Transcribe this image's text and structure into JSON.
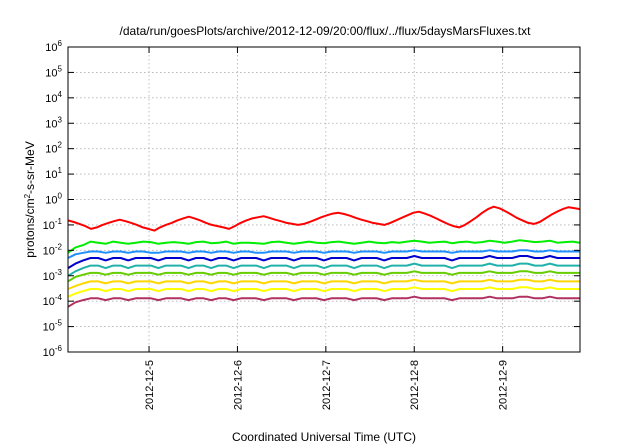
{
  "chart_data": {
    "type": "line",
    "title": "/data/run/goesPlots/archive/2012-12-09/20:00/flux/../flux/5daysMarsFluxes.txt",
    "xlabel": "Coordinated Universal Time (UTC)",
    "ylabel_parts": {
      "base": "protons/cm",
      "sup": "2",
      "rest": "-s-sr-MeV"
    },
    "y_scale": "log",
    "ylim": [
      1e-06,
      1000000.0
    ],
    "y_ticks": [
      {
        "mant": "10",
        "exp": "-6",
        "value": 1e-06
      },
      {
        "mant": "10",
        "exp": "-5",
        "value": 1e-05
      },
      {
        "mant": "10",
        "exp": "-4",
        "value": 0.0001
      },
      {
        "mant": "10",
        "exp": "-3",
        "value": 0.001
      },
      {
        "mant": "10",
        "exp": "-2",
        "value": 0.01
      },
      {
        "mant": "10",
        "exp": "-1",
        "value": 0.1
      },
      {
        "mant": "10",
        "exp": "0",
        "value": 1
      },
      {
        "mant": "10",
        "exp": "1",
        "value": 10
      },
      {
        "mant": "10",
        "exp": "2",
        "value": 100
      },
      {
        "mant": "10",
        "exp": "3",
        "value": 1000
      },
      {
        "mant": "10",
        "exp": "4",
        "value": 10000
      },
      {
        "mant": "10",
        "exp": "5",
        "value": 100000
      },
      {
        "mant": "10",
        "exp": "6",
        "value": 1000000
      }
    ],
    "xlim": [
      "2012-12-04T02:00",
      "2012-12-09T21:00"
    ],
    "x_ticks": [
      "2012-12-5",
      "2012-12-6",
      "2012-12-7",
      "2012-12-8",
      "2012-12-9"
    ],
    "x_tick_values": [
      "2012-12-05",
      "2012-12-06",
      "2012-12-07",
      "2012-12-08",
      "2012-12-09"
    ],
    "grid": true,
    "legend": "none",
    "series": [
      {
        "color": "#ff0000",
        "values": [
          0.15,
          0.13,
          0.11,
          0.09,
          0.07,
          0.08,
          0.1,
          0.12,
          0.14,
          0.16,
          0.14,
          0.12,
          0.1,
          0.08,
          0.07,
          0.06,
          0.08,
          0.1,
          0.12,
          0.15,
          0.18,
          0.21,
          0.18,
          0.15,
          0.12,
          0.1,
          0.09,
          0.08,
          0.07,
          0.09,
          0.12,
          0.15,
          0.18,
          0.2,
          0.22,
          0.19,
          0.16,
          0.14,
          0.12,
          0.11,
          0.1,
          0.11,
          0.13,
          0.16,
          0.2,
          0.24,
          0.28,
          0.3,
          0.27,
          0.23,
          0.19,
          0.16,
          0.14,
          0.12,
          0.11,
          0.1,
          0.12,
          0.15,
          0.19,
          0.24,
          0.3,
          0.33,
          0.28,
          0.23,
          0.18,
          0.14,
          0.11,
          0.09,
          0.08,
          0.1,
          0.14,
          0.2,
          0.3,
          0.42,
          0.52,
          0.45,
          0.35,
          0.26,
          0.19,
          0.15,
          0.12,
          0.11,
          0.13,
          0.18,
          0.25,
          0.33,
          0.42,
          0.5,
          0.46,
          0.42
        ]
      },
      {
        "color": "#00ee00",
        "values": [
          0.008,
          0.013,
          0.016,
          0.022,
          0.02,
          0.018,
          0.022,
          0.02,
          0.018,
          0.02,
          0.022,
          0.021,
          0.018,
          0.02,
          0.021,
          0.02,
          0.018,
          0.021,
          0.022,
          0.019,
          0.02,
          0.022,
          0.018,
          0.02,
          0.02,
          0.019,
          0.018,
          0.021,
          0.022,
          0.02,
          0.018,
          0.02,
          0.022,
          0.02,
          0.019,
          0.021,
          0.022,
          0.02,
          0.018,
          0.02,
          0.022,
          0.02,
          0.019,
          0.021,
          0.02,
          0.022,
          0.024,
          0.022,
          0.02,
          0.021,
          0.022,
          0.019,
          0.021,
          0.022,
          0.02,
          0.021,
          0.024,
          0.022,
          0.02,
          0.022,
          0.025,
          0.023,
          0.021,
          0.022,
          0.024,
          0.02,
          0.021,
          0.022,
          0.02
        ]
      },
      {
        "color": "#1e90ff",
        "values": [
          0.005,
          0.007,
          0.008,
          0.009,
          0.009,
          0.008,
          0.009,
          0.009,
          0.008,
          0.009,
          0.009,
          0.008,
          0.008,
          0.009,
          0.009,
          0.009,
          0.008,
          0.009,
          0.009,
          0.008,
          0.009,
          0.009,
          0.008,
          0.009,
          0.009,
          0.008,
          0.008,
          0.009,
          0.009,
          0.009,
          0.008,
          0.009,
          0.009,
          0.009,
          0.008,
          0.009,
          0.009,
          0.009,
          0.008,
          0.009,
          0.009,
          0.009,
          0.008,
          0.009,
          0.009,
          0.009,
          0.01,
          0.009,
          0.009,
          0.009,
          0.009,
          0.008,
          0.009,
          0.009,
          0.009,
          0.009,
          0.01,
          0.009,
          0.009,
          0.009,
          0.01,
          0.01,
          0.009,
          0.009,
          0.01,
          0.009,
          0.009,
          0.009,
          0.009
        ]
      },
      {
        "color": "#0000cd",
        "values": [
          0.002,
          0.003,
          0.004,
          0.005,
          0.005,
          0.004,
          0.005,
          0.005,
          0.004,
          0.005,
          0.005,
          0.005,
          0.004,
          0.005,
          0.005,
          0.005,
          0.004,
          0.005,
          0.005,
          0.004,
          0.005,
          0.005,
          0.004,
          0.005,
          0.005,
          0.005,
          0.004,
          0.005,
          0.005,
          0.005,
          0.004,
          0.005,
          0.005,
          0.005,
          0.004,
          0.005,
          0.005,
          0.005,
          0.004,
          0.005,
          0.005,
          0.005,
          0.004,
          0.005,
          0.005,
          0.005,
          0.006,
          0.005,
          0.005,
          0.005,
          0.005,
          0.004,
          0.005,
          0.005,
          0.005,
          0.005,
          0.006,
          0.005,
          0.005,
          0.005,
          0.006,
          0.006,
          0.005,
          0.005,
          0.006,
          0.005,
          0.005,
          0.005,
          0.005
        ]
      },
      {
        "color": "#20b2aa",
        "values": [
          0.001,
          0.0015,
          0.002,
          0.0025,
          0.0025,
          0.002,
          0.0025,
          0.0025,
          0.002,
          0.0025,
          0.0025,
          0.0025,
          0.002,
          0.0025,
          0.0025,
          0.0025,
          0.002,
          0.0025,
          0.0025,
          0.002,
          0.0025,
          0.0025,
          0.002,
          0.0025,
          0.0025,
          0.0025,
          0.002,
          0.0025,
          0.0025,
          0.0025,
          0.002,
          0.0025,
          0.0025,
          0.0025,
          0.002,
          0.0025,
          0.0025,
          0.0025,
          0.002,
          0.0025,
          0.0025,
          0.0025,
          0.002,
          0.0025,
          0.0025,
          0.0025,
          0.003,
          0.0025,
          0.0025,
          0.0025,
          0.0025,
          0.002,
          0.0025,
          0.0025,
          0.0025,
          0.0025,
          0.003,
          0.0025,
          0.0025,
          0.0025,
          0.003,
          0.003,
          0.0025,
          0.0025,
          0.003,
          0.0025,
          0.0025,
          0.0025,
          0.0025
        ]
      },
      {
        "color": "#66cd00",
        "values": [
          0.0006,
          0.0009,
          0.0011,
          0.0013,
          0.0013,
          0.0011,
          0.0013,
          0.0013,
          0.0011,
          0.0013,
          0.0013,
          0.0013,
          0.0011,
          0.0013,
          0.0013,
          0.0013,
          0.0011,
          0.0013,
          0.0013,
          0.0011,
          0.0013,
          0.0013,
          0.0011,
          0.0013,
          0.0013,
          0.0013,
          0.0011,
          0.0013,
          0.0013,
          0.0013,
          0.0011,
          0.0013,
          0.0013,
          0.0013,
          0.0011,
          0.0013,
          0.0013,
          0.0013,
          0.0011,
          0.0013,
          0.0013,
          0.0013,
          0.0011,
          0.0013,
          0.0013,
          0.0013,
          0.0015,
          0.0013,
          0.0013,
          0.0013,
          0.0013,
          0.0011,
          0.0013,
          0.0013,
          0.0013,
          0.0013,
          0.0015,
          0.0013,
          0.0013,
          0.0013,
          0.0015,
          0.0015,
          0.0013,
          0.0013,
          0.0015,
          0.0013,
          0.0013,
          0.0013,
          0.0013
        ]
      },
      {
        "color": "#ffd700",
        "values": [
          0.0003,
          0.0004,
          0.0005,
          0.0006,
          0.0006,
          0.0005,
          0.0006,
          0.0006,
          0.0005,
          0.0006,
          0.0006,
          0.0006,
          0.0005,
          0.0006,
          0.0006,
          0.0006,
          0.0005,
          0.0006,
          0.0006,
          0.0005,
          0.0006,
          0.0006,
          0.0005,
          0.0006,
          0.0006,
          0.0006,
          0.0005,
          0.0006,
          0.0006,
          0.0006,
          0.0005,
          0.0006,
          0.0006,
          0.0006,
          0.0005,
          0.0006,
          0.0006,
          0.0006,
          0.0005,
          0.0006,
          0.0006,
          0.0006,
          0.0005,
          0.0006,
          0.0006,
          0.0006,
          0.0007,
          0.0006,
          0.0006,
          0.0006,
          0.0006,
          0.0005,
          0.0006,
          0.0006,
          0.0006,
          0.0006,
          0.0007,
          0.0006,
          0.0006,
          0.0006,
          0.0007,
          0.0007,
          0.0006,
          0.0006,
          0.0007,
          0.0006,
          0.0006,
          0.0006,
          0.0006
        ]
      },
      {
        "color": "#ffff00",
        "values": [
          0.00015,
          0.0002,
          0.00025,
          0.0003,
          0.0003,
          0.00025,
          0.0003,
          0.0003,
          0.00025,
          0.0003,
          0.0003,
          0.0003,
          0.00025,
          0.0003,
          0.0003,
          0.0003,
          0.00025,
          0.0003,
          0.0003,
          0.00025,
          0.0003,
          0.0003,
          0.00025,
          0.0003,
          0.0003,
          0.0003,
          0.00025,
          0.0003,
          0.0003,
          0.0003,
          0.00025,
          0.0003,
          0.0003,
          0.0003,
          0.00025,
          0.0003,
          0.0003,
          0.0003,
          0.00025,
          0.0003,
          0.0003,
          0.0003,
          0.00025,
          0.0003,
          0.0003,
          0.0003,
          0.00035,
          0.0003,
          0.0003,
          0.0003,
          0.0003,
          0.00025,
          0.0003,
          0.0003,
          0.0003,
          0.0003,
          0.00035,
          0.0003,
          0.0003,
          0.0003,
          0.00035,
          0.00035,
          0.0003,
          0.0003,
          0.00035,
          0.0003,
          0.0003,
          0.0003,
          0.0003
        ]
      },
      {
        "color": "#b03060",
        "values": [
          6e-05,
          9e-05,
          0.00011,
          0.00013,
          0.00013,
          0.00011,
          0.00013,
          0.00013,
          0.00011,
          0.00013,
          0.00013,
          0.00013,
          0.00011,
          0.00013,
          0.00013,
          0.00013,
          0.00011,
          0.00013,
          0.00013,
          0.00011,
          0.00013,
          0.00013,
          0.00011,
          0.00013,
          0.00013,
          0.00013,
          0.00011,
          0.00013,
          0.00013,
          0.00013,
          0.00011,
          0.00013,
          0.00013,
          0.00013,
          0.00011,
          0.00013,
          0.00013,
          0.00013,
          0.00011,
          0.00013,
          0.00013,
          0.00013,
          0.00011,
          0.00013,
          0.00013,
          0.00013,
          0.00015,
          0.00013,
          0.00013,
          0.00013,
          0.00013,
          0.00011,
          0.00013,
          0.00013,
          0.00013,
          0.00013,
          0.00015,
          0.00013,
          0.00013,
          0.00013,
          0.00015,
          0.00015,
          0.00013,
          0.00013,
          0.00015,
          0.00013,
          0.00013,
          0.00013,
          0.00013
        ]
      }
    ]
  }
}
